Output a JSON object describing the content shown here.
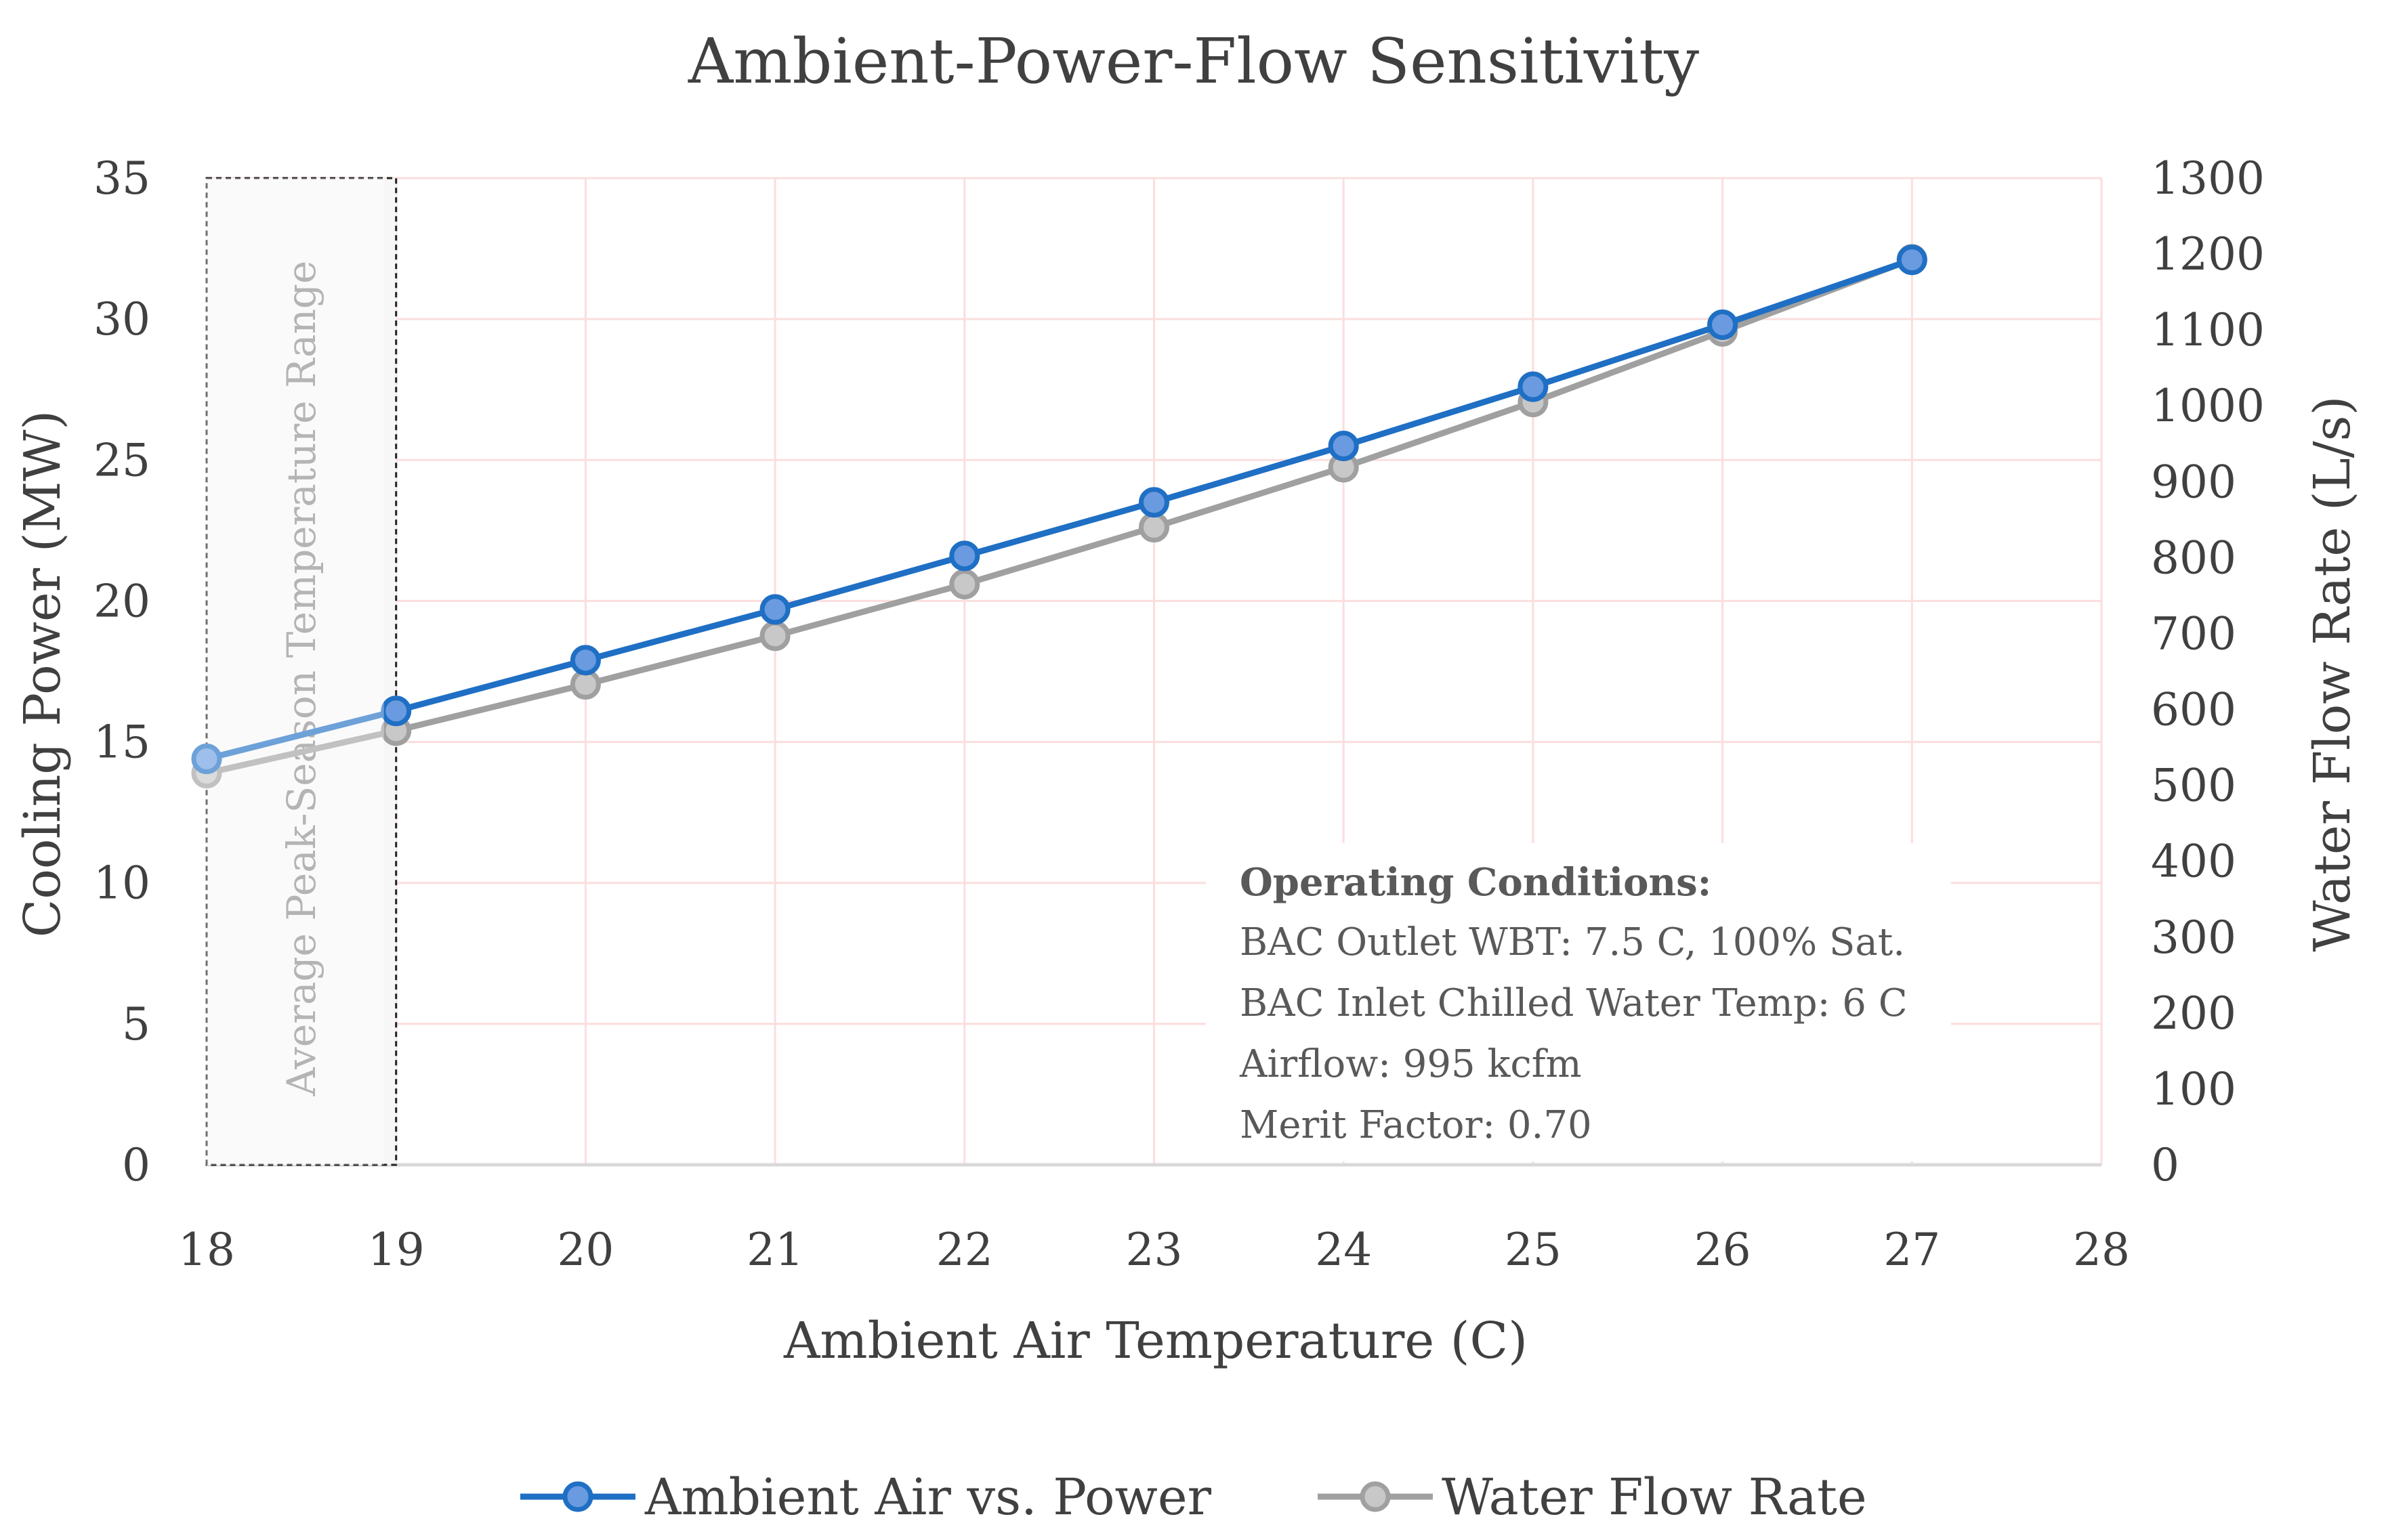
{
  "chart_data": {
    "type": "line",
    "title": "Ambient-Power-Flow Sensitivity",
    "xlabel": "Ambient Air Temperature (C)",
    "ylabel": "Cooling Power (MW)",
    "y2label": "Water Flow Rate (L/s)",
    "xlim": [
      18,
      28
    ],
    "ylim": [
      0,
      35
    ],
    "y2lim": [
      0,
      1300
    ],
    "x_ticks": [
      18,
      19,
      20,
      21,
      22,
      23,
      24,
      25,
      26,
      27,
      28
    ],
    "y_ticks": [
      0,
      5,
      10,
      15,
      20,
      25,
      30,
      35
    ],
    "y2_ticks": [
      0,
      100,
      200,
      300,
      400,
      500,
      600,
      700,
      800,
      900,
      1000,
      1100,
      1200,
      1300
    ],
    "grid": true,
    "legend_position": "bottom-center",
    "series": [
      {
        "name": "Ambient Air vs. Power",
        "axis": "left",
        "color": "#1f6fc4",
        "marker_fill": "#6a9be0",
        "x": [
          18,
          19,
          20,
          21,
          22,
          23,
          24,
          25,
          26,
          27
        ],
        "values": [
          14.4,
          16.1,
          17.9,
          19.7,
          21.6,
          23.5,
          25.5,
          27.6,
          29.8,
          32.1
        ]
      },
      {
        "name": "Water Flow Rate",
        "axis": "right",
        "color": "#a0a0a0",
        "marker_fill": "#c8c8c8",
        "x": [
          18,
          19,
          20,
          21,
          22,
          23,
          24,
          25,
          26,
          27
        ],
        "values": [
          516,
          572,
          633,
          697,
          765,
          840,
          919,
          1005,
          1098,
          1193
        ]
      }
    ],
    "shaded_region": {
      "x_range": [
        18,
        19
      ],
      "label": "Average Peak-Season Temperature Range"
    },
    "annotation": {
      "heading": "Operating Conditions:",
      "lines": [
        "BAC Outlet WBT: 7.5 C, 100% Sat.",
        "BAC Inlet Chilled Water Temp: 6 C",
        "Airflow: 995 kcfm",
        "Merit Factor: 0.70"
      ]
    }
  }
}
